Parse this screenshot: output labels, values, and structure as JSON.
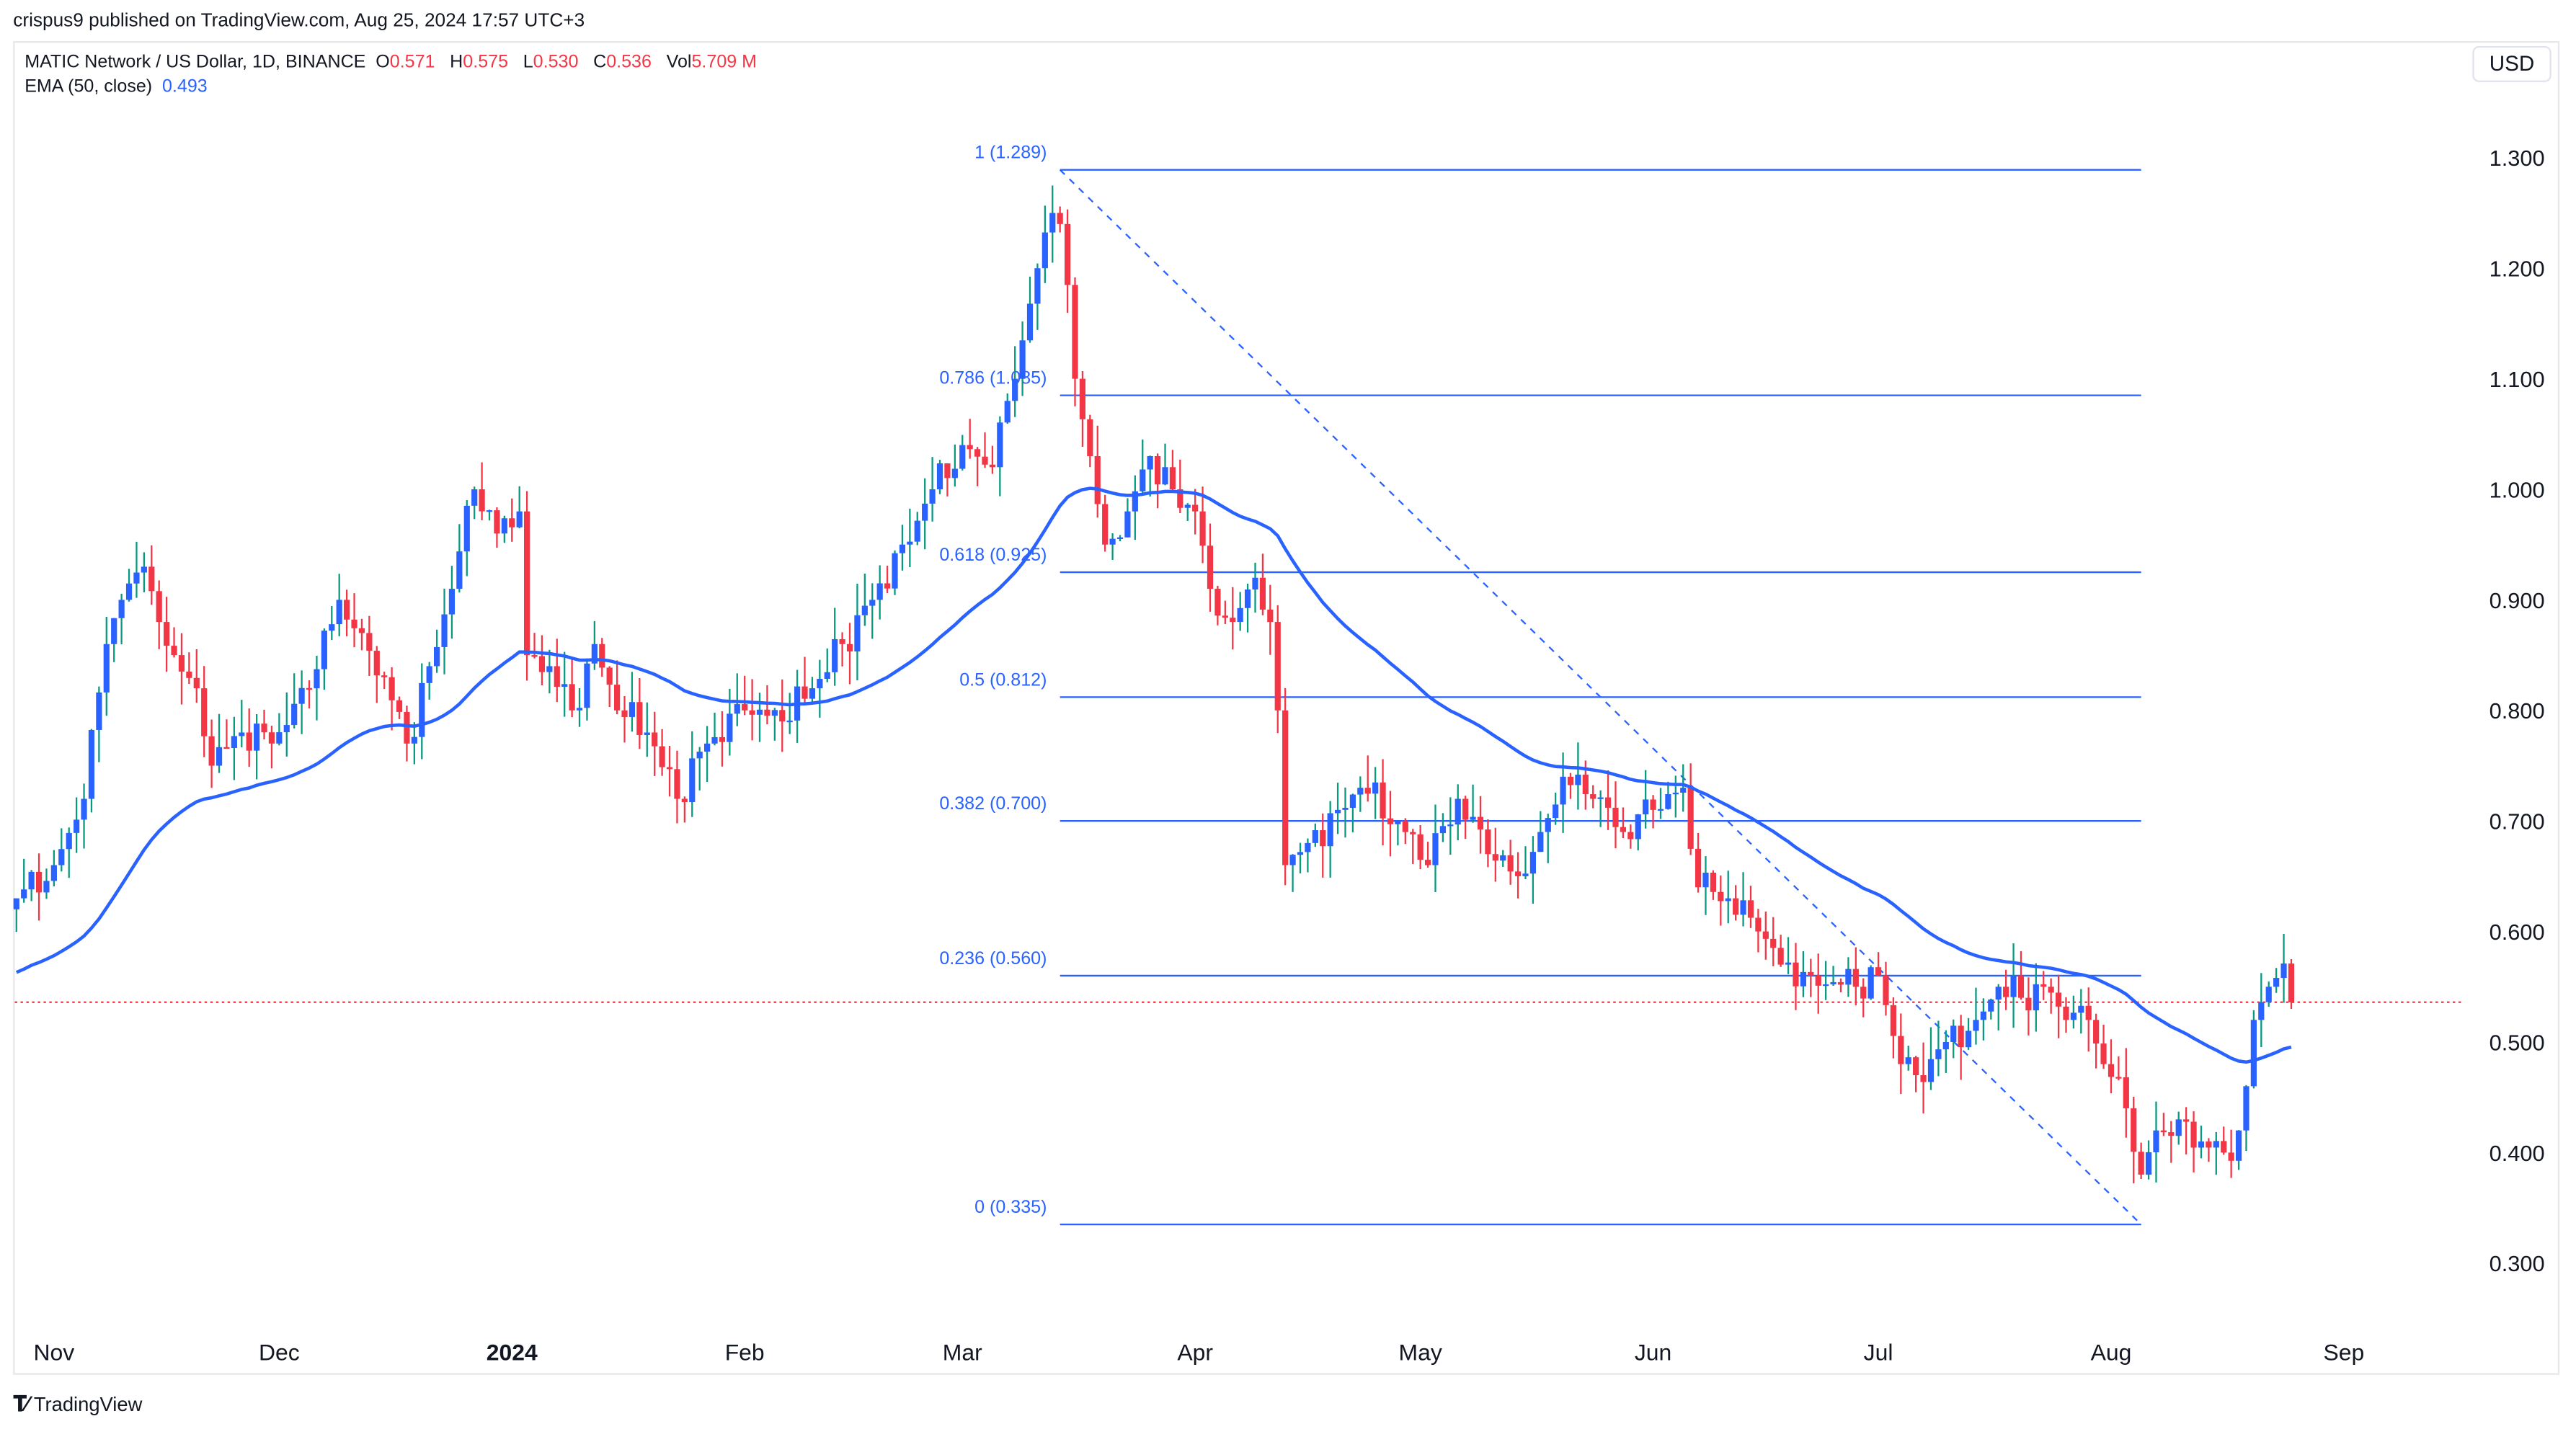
{
  "header": {
    "published": "crispus9 published on TradingView.com, Aug 25, 2024 17:57 UTC+3"
  },
  "legend": {
    "symbol": "MATIC Network / US Dollar, 1D, BINANCE",
    "o_label": "O",
    "o": "0.571",
    "h_label": "H",
    "h": "0.575",
    "l_label": "L",
    "l": "0.530",
    "c_label": "C",
    "c": "0.536",
    "vol_label": "Vol",
    "vol": "5.709 M",
    "ema_label": "EMA (50, close)",
    "ema_value": "0.493"
  },
  "currency": "USD",
  "brand": "TradingView",
  "colors": {
    "up_body": "#2962ff",
    "up_wick": "#089981",
    "down": "#f23645",
    "ema": "#2962ff",
    "fib": "#2962ff",
    "last_price": "#f23645"
  },
  "chart_data": {
    "type": "candlestick",
    "title": "MATIC Network / US Dollar, 1D, BINANCE",
    "ylim": [
      0.24,
      1.39
    ],
    "y_ticks": [
      "1.300",
      "1.200",
      "1.100",
      "1.000",
      "0.900",
      "0.800",
      "0.700",
      "0.600",
      "0.500",
      "0.400",
      "0.300"
    ],
    "x_ticks": [
      {
        "label": "Nov",
        "date": "2023-11-01",
        "bold": false
      },
      {
        "label": "Dec",
        "date": "2023-12-01",
        "bold": false
      },
      {
        "label": "2024",
        "date": "2024-01-01",
        "bold": true
      },
      {
        "label": "Feb",
        "date": "2024-02-01",
        "bold": false
      },
      {
        "label": "Mar",
        "date": "2024-03-01",
        "bold": false
      },
      {
        "label": "Apr",
        "date": "2024-04-01",
        "bold": false
      },
      {
        "label": "May",
        "date": "2024-05-01",
        "bold": false
      },
      {
        "label": "Jun",
        "date": "2024-06-01",
        "bold": false
      },
      {
        "label": "Jul",
        "date": "2024-07-01",
        "bold": false
      },
      {
        "label": "Aug",
        "date": "2024-08-01",
        "bold": false
      },
      {
        "label": "Sep",
        "date": "2024-09-01",
        "bold": false
      }
    ],
    "start_date": "2023-10-27",
    "end_date": "2024-08-25",
    "close_keypoints": [
      [
        "2023-10-27",
        0.63
      ],
      [
        "2023-11-01",
        0.66
      ],
      [
        "2023-11-05",
        0.72
      ],
      [
        "2023-11-08",
        0.86
      ],
      [
        "2023-11-10",
        0.9
      ],
      [
        "2023-11-13",
        0.93
      ],
      [
        "2023-11-15",
        0.88
      ],
      [
        "2023-11-17",
        0.85
      ],
      [
        "2023-11-20",
        0.82
      ],
      [
        "2023-11-22",
        0.75
      ],
      [
        "2023-11-26",
        0.78
      ],
      [
        "2023-11-30",
        0.77
      ],
      [
        "2023-12-05",
        0.82
      ],
      [
        "2023-12-09",
        0.9
      ],
      [
        "2023-12-12",
        0.87
      ],
      [
        "2023-12-15",
        0.83
      ],
      [
        "2023-12-18",
        0.77
      ],
      [
        "2023-12-21",
        0.84
      ],
      [
        "2023-12-24",
        0.91
      ],
      [
        "2023-12-27",
        1.0
      ],
      [
        "2023-12-30",
        0.96
      ],
      [
        "2024-01-02",
        0.98
      ],
      [
        "2024-01-03",
        0.85
      ],
      [
        "2024-01-06",
        0.84
      ],
      [
        "2024-01-09",
        0.8
      ],
      [
        "2024-01-12",
        0.86
      ],
      [
        "2024-01-15",
        0.8
      ],
      [
        "2024-01-19",
        0.78
      ],
      [
        "2024-01-23",
        0.72
      ],
      [
        "2024-01-27",
        0.77
      ],
      [
        "2024-02-01",
        0.8
      ],
      [
        "2024-02-06",
        0.79
      ],
      [
        "2024-02-10",
        0.82
      ],
      [
        "2024-02-14",
        0.86
      ],
      [
        "2024-02-18",
        0.9
      ],
      [
        "2024-02-22",
        0.95
      ],
      [
        "2024-02-26",
        1.0
      ],
      [
        "2024-03-01",
        1.04
      ],
      [
        "2024-03-05",
        1.02
      ],
      [
        "2024-03-08",
        1.1
      ],
      [
        "2024-03-11",
        1.2
      ],
      [
        "2024-03-13",
        1.25
      ],
      [
        "2024-03-14",
        1.24
      ],
      [
        "2024-03-16",
        1.1
      ],
      [
        "2024-03-18",
        1.03
      ],
      [
        "2024-03-20",
        0.95
      ],
      [
        "2024-03-23",
        0.98
      ],
      [
        "2024-03-26",
        1.03
      ],
      [
        "2024-03-29",
        1.0
      ],
      [
        "2024-04-01",
        0.98
      ],
      [
        "2024-04-03",
        0.91
      ],
      [
        "2024-04-06",
        0.88
      ],
      [
        "2024-04-09",
        0.92
      ],
      [
        "2024-04-11",
        0.88
      ],
      [
        "2024-04-12",
        0.8
      ],
      [
        "2024-04-13",
        0.66
      ],
      [
        "2024-04-16",
        0.68
      ],
      [
        "2024-04-20",
        0.71
      ],
      [
        "2024-04-23",
        0.73
      ],
      [
        "2024-04-28",
        0.7
      ],
      [
        "2024-05-02",
        0.66
      ],
      [
        "2024-05-06",
        0.72
      ],
      [
        "2024-05-10",
        0.67
      ],
      [
        "2024-05-14",
        0.65
      ],
      [
        "2024-05-17",
        0.69
      ],
      [
        "2024-05-20",
        0.74
      ],
      [
        "2024-05-24",
        0.72
      ],
      [
        "2024-05-28",
        0.69
      ],
      [
        "2024-06-01",
        0.71
      ],
      [
        "2024-06-05",
        0.73
      ],
      [
        "2024-06-07",
        0.64
      ],
      [
        "2024-06-11",
        0.63
      ],
      [
        "2024-06-15",
        0.6
      ],
      [
        "2024-06-18",
        0.57
      ],
      [
        "2024-06-22",
        0.56
      ],
      [
        "2024-06-28",
        0.55
      ],
      [
        "2024-07-01",
        0.56
      ],
      [
        "2024-07-04",
        0.48
      ],
      [
        "2024-07-06",
        0.47
      ],
      [
        "2024-07-10",
        0.5
      ],
      [
        "2024-07-14",
        0.52
      ],
      [
        "2024-07-17",
        0.55
      ],
      [
        "2024-07-20",
        0.54
      ],
      [
        "2024-07-23",
        0.55
      ],
      [
        "2024-07-26",
        0.52
      ],
      [
        "2024-07-29",
        0.52
      ],
      [
        "2024-07-31",
        0.48
      ],
      [
        "2024-08-03",
        0.44
      ],
      [
        "2024-08-05",
        0.38
      ],
      [
        "2024-08-07",
        0.42
      ],
      [
        "2024-08-10",
        0.43
      ],
      [
        "2024-08-13",
        0.41
      ],
      [
        "2024-08-16",
        0.4
      ],
      [
        "2024-08-18",
        0.42
      ],
      [
        "2024-08-19",
        0.46
      ],
      [
        "2024-08-20",
        0.52
      ],
      [
        "2024-08-22",
        0.55
      ],
      [
        "2024-08-24",
        0.571
      ],
      [
        "2024-08-25",
        0.536
      ]
    ],
    "ema": {
      "period": 50,
      "start_value": 0.563
    },
    "last_price": 0.536,
    "fibonacci": {
      "from": {
        "date": "2024-03-14",
        "price": 1.289
      },
      "to": {
        "date": "2024-08-05",
        "price": 0.335
      },
      "levels": [
        {
          "ratio": "1",
          "price": 1.289,
          "label": "1 (1.289)"
        },
        {
          "ratio": "0.786",
          "price": 1.085,
          "label": "0.786 (1.085)"
        },
        {
          "ratio": "0.618",
          "price": 0.925,
          "label": "0.618 (0.925)"
        },
        {
          "ratio": "0.5",
          "price": 0.812,
          "label": "0.5 (0.812)"
        },
        {
          "ratio": "0.382",
          "price": 0.7,
          "label": "0.382 (0.700)"
        },
        {
          "ratio": "0.236",
          "price": 0.56,
          "label": "0.236 (0.560)"
        },
        {
          "ratio": "0",
          "price": 0.335,
          "label": "0 (0.335)"
        }
      ]
    }
  }
}
